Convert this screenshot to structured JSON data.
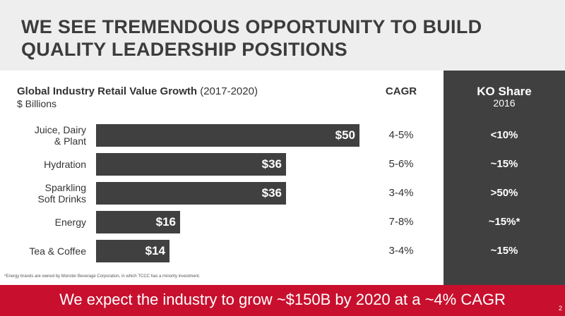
{
  "slide": {
    "title": "WE SEE TREMENDOUS OPPORTUNITY TO BUILD QUALITY LEADERSHIP POSITIONS",
    "footnote": "*Energy brands are owned by Monster Beverage Corporation, in which TCCC has a minority investment.",
    "footer": "We expect the industry to grow ~$150B by 2020 at a ~4% CAGR",
    "page_number": "2"
  },
  "chart_data": {
    "type": "bar",
    "orientation": "horizontal",
    "title": "Global Industry Retail Value Growth",
    "title_period": "(2017-2020)",
    "unit": "$ Billions",
    "categories": [
      "Juice, Dairy & Plant",
      "Hydration",
      "Sparkling Soft Drinks",
      "Energy",
      "Tea & Coffee"
    ],
    "category_lines": [
      [
        "Juice, Dairy",
        "& Plant"
      ],
      [
        "Hydration"
      ],
      [
        "Sparkling",
        "Soft Drinks"
      ],
      [
        "Energy"
      ],
      [
        "Tea & Coffee"
      ]
    ],
    "values": [
      50,
      36,
      36,
      16,
      14
    ],
    "value_labels": [
      "$50",
      "$36",
      "$36",
      "$16",
      "$14"
    ],
    "xlim": [
      0,
      50
    ],
    "cagr_header": "CAGR",
    "cagr": [
      "4-5%",
      "5-6%",
      "3-4%",
      "7-8%",
      "3-4%"
    ],
    "share_header": "KO Share",
    "share_subheader": "2016",
    "ko_share": [
      "<10%",
      "~15%",
      ">50%",
      "~15%*",
      "~15%"
    ],
    "colors": {
      "bar": "#404040",
      "panel": "#404040",
      "footer": "#c8102e",
      "header_bg": "#eeeeee"
    }
  }
}
